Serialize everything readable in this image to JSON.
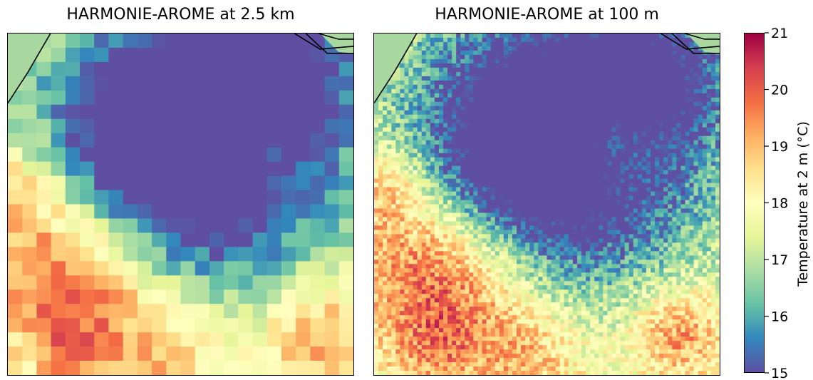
{
  "panels": [
    {
      "title": "HARMONIE-AROME at 2.5 km"
    },
    {
      "title": "HARMONIE-AROME at 100 m"
    }
  ],
  "colorbar": {
    "label": "Temperature at 2 m (°C)",
    "ticks": [
      "15",
      "16",
      "17",
      "18",
      "19",
      "20",
      "21"
    ],
    "colormap": [
      "#5e4fa2",
      "#3288bd",
      "#66c2a5",
      "#abdda4",
      "#e6f598",
      "#ffffbf",
      "#fee08b",
      "#fdae61",
      "#f46d43",
      "#d53e4f",
      "#9e0142"
    ]
  },
  "chart_data": {
    "type": "heatmap",
    "panels": [
      "HARMONIE-AROME at 2.5 km",
      "HARMONIE-AROME at 100 m"
    ],
    "variable": "Temperature at 2 m (°C)",
    "value_range": [
      15,
      21
    ],
    "colorbar_ticks": [
      15,
      16,
      17,
      18,
      19,
      20,
      21
    ],
    "colormap": "Spectral_r",
    "coastline_color": "#000000",
    "sea_color": "#a8d8a0"
  }
}
